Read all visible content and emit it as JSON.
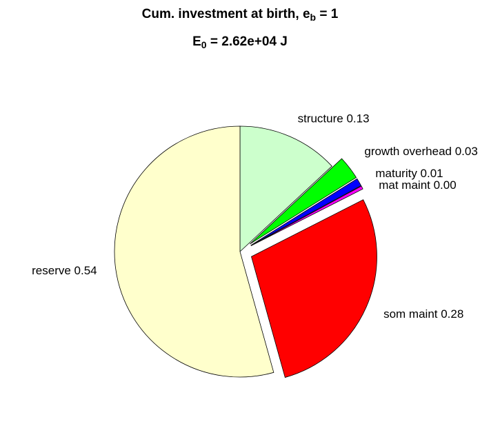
{
  "chart_data": {
    "type": "pie",
    "title": [
      "Cum. investment at birth, e",
      "b",
      " = 1"
    ],
    "subtitle": [
      "E",
      "0",
      " = 2.62e+04 J"
    ],
    "labels": [
      "structure 0.13",
      "growth overhead 0.03",
      "maturity 0.01",
      "mat maint 0.00",
      "som maint 0.28",
      "reserve 0.54"
    ],
    "values": [
      0.13,
      0.03,
      0.01,
      0.004,
      0.28,
      0.54
    ],
    "colors": [
      "#ccffcc",
      "#00ff00",
      "#0000ff",
      "#ff00ff",
      "#ff0000",
      "#ffffcc"
    ],
    "explode": [
      false,
      true,
      true,
      true,
      true,
      false
    ]
  }
}
